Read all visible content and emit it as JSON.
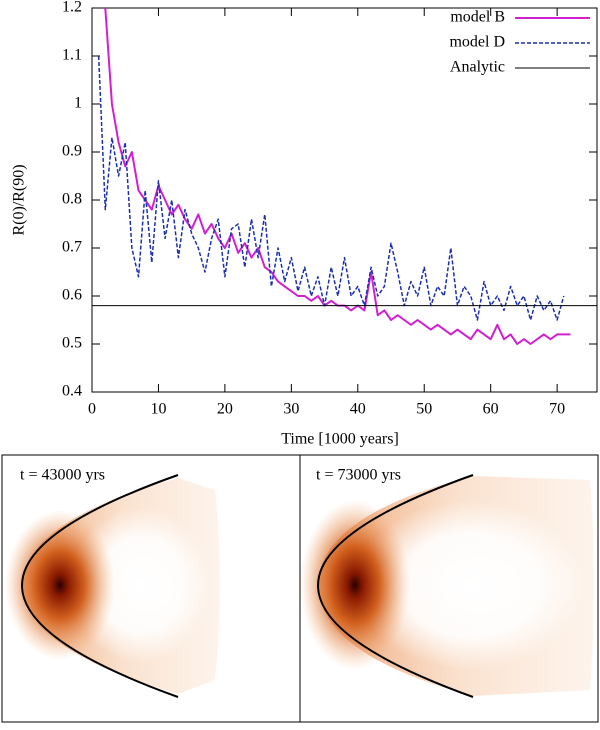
{
  "chart_data": {
    "type": "line",
    "xlabel": "Time [1000 years]",
    "ylabel": "R(0)/R(90)",
    "xlim": [
      0,
      76
    ],
    "ylim": [
      0.4,
      1.2
    ],
    "xticks": [
      0,
      10,
      20,
      30,
      40,
      50,
      60,
      70
    ],
    "yticks": [
      0.4,
      0.5,
      0.6,
      0.7,
      0.8,
      0.9,
      1,
      1.1,
      1.2
    ],
    "legend": "top-right",
    "series": [
      {
        "name": "model B",
        "color": "#d020d0",
        "style": "solid",
        "x": [
          2,
          3,
          4,
          5,
          6,
          7,
          8,
          9,
          10,
          11,
          12,
          13,
          14,
          15,
          16,
          17,
          18,
          19,
          20,
          21,
          22,
          23,
          24,
          25,
          26,
          27,
          28,
          29,
          30,
          31,
          32,
          33,
          34,
          35,
          36,
          37,
          38,
          39,
          40,
          41,
          42,
          43,
          44,
          45,
          46,
          47,
          48,
          49,
          50,
          51,
          52,
          53,
          54,
          55,
          56,
          57,
          58,
          59,
          60,
          61,
          62,
          63,
          64,
          65,
          66,
          67,
          68,
          69,
          70,
          71,
          72
        ],
        "values": [
          1.2,
          1.0,
          0.92,
          0.87,
          0.9,
          0.82,
          0.8,
          0.78,
          0.83,
          0.8,
          0.77,
          0.79,
          0.76,
          0.74,
          0.77,
          0.73,
          0.75,
          0.72,
          0.7,
          0.73,
          0.69,
          0.71,
          0.68,
          0.7,
          0.66,
          0.65,
          0.63,
          0.62,
          0.61,
          0.6,
          0.6,
          0.59,
          0.6,
          0.58,
          0.59,
          0.58,
          0.58,
          0.57,
          0.58,
          0.57,
          0.65,
          0.56,
          0.57,
          0.55,
          0.56,
          0.55,
          0.54,
          0.55,
          0.54,
          0.53,
          0.54,
          0.53,
          0.52,
          0.53,
          0.52,
          0.51,
          0.53,
          0.52,
          0.51,
          0.54,
          0.51,
          0.52,
          0.5,
          0.51,
          0.5,
          0.51,
          0.52,
          0.51,
          0.52,
          0.52,
          0.52
        ]
      },
      {
        "name": "model D",
        "color": "#1a2fb0",
        "style": "dashed",
        "x": [
          1,
          2,
          3,
          4,
          5,
          6,
          7,
          8,
          9,
          10,
          11,
          12,
          13,
          14,
          15,
          16,
          17,
          18,
          19,
          20,
          21,
          22,
          23,
          24,
          25,
          26,
          27,
          28,
          29,
          30,
          31,
          32,
          33,
          34,
          35,
          36,
          37,
          38,
          39,
          40,
          41,
          42,
          43,
          44,
          45,
          46,
          47,
          48,
          49,
          50,
          51,
          52,
          53,
          54,
          55,
          56,
          57,
          58,
          59,
          60,
          61,
          62,
          63,
          64,
          65,
          66,
          67,
          68,
          69,
          70,
          71
        ],
        "values": [
          1.1,
          0.78,
          0.93,
          0.85,
          0.92,
          0.7,
          0.64,
          0.82,
          0.67,
          0.84,
          0.72,
          0.8,
          0.68,
          0.78,
          0.73,
          0.7,
          0.65,
          0.72,
          0.76,
          0.64,
          0.74,
          0.75,
          0.66,
          0.76,
          0.68,
          0.77,
          0.62,
          0.7,
          0.63,
          0.68,
          0.61,
          0.66,
          0.6,
          0.64,
          0.58,
          0.66,
          0.6,
          0.68,
          0.6,
          0.62,
          0.58,
          0.66,
          0.6,
          0.62,
          0.71,
          0.65,
          0.58,
          0.63,
          0.6,
          0.66,
          0.58,
          0.62,
          0.6,
          0.7,
          0.58,
          0.62,
          0.6,
          0.55,
          0.63,
          0.58,
          0.6,
          0.57,
          0.62,
          0.58,
          0.6,
          0.55,
          0.6,
          0.57,
          0.59,
          0.55,
          0.6
        ]
      },
      {
        "name": "Analytic",
        "color": "#000000",
        "style": "thin",
        "x": [
          0,
          76
        ],
        "values": [
          0.58,
          0.58
        ]
      }
    ]
  },
  "panels": [
    {
      "label": "t = 43000 yrs"
    },
    {
      "label": "t = 73000 yrs"
    }
  ]
}
